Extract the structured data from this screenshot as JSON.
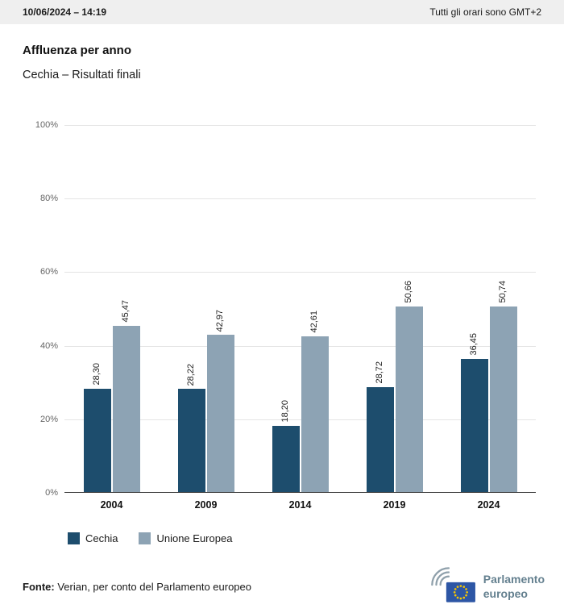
{
  "top_bar": {
    "datetime": "10/06/2024 – 14:19",
    "timezone_note": "Tutti gli orari sono GMT+2"
  },
  "header": {
    "title": "Affluenza per anno",
    "subtitle": "Cechia – Risultati finali"
  },
  "chart_data": {
    "type": "bar",
    "title": "Affluenza per anno",
    "subtitle": "Cechia – Risultati finali",
    "categories": [
      "2004",
      "2009",
      "2014",
      "2019",
      "2024"
    ],
    "series": [
      {
        "name": "Cechia",
        "color": "#1d4d6d",
        "values": [
          28.3,
          28.22,
          18.2,
          28.72,
          36.45
        ],
        "labels": [
          "28,30",
          "28,22",
          "18,20",
          "28,72",
          "36,45"
        ]
      },
      {
        "name": "Unione Europea",
        "color": "#8da3b4",
        "values": [
          45.47,
          42.97,
          42.61,
          50.66,
          50.74
        ],
        "labels": [
          "45,47",
          "42,97",
          "42,61",
          "50,66",
          "50,74"
        ]
      }
    ],
    "ylim": [
      0,
      100
    ],
    "yticks": [
      "0%",
      "20%",
      "40%",
      "60%",
      "80%",
      "100%"
    ],
    "grid": true,
    "legend_position": "bottom",
    "value_label_rotation": -90
  },
  "legend": {
    "items": [
      {
        "label": "Cechia",
        "color": "#1d4d6d"
      },
      {
        "label": "Unione Europea",
        "color": "#8da3b4"
      }
    ]
  },
  "footer": {
    "source_label": "Fonte:",
    "source_text": " Verian, per conto del Parlamento europeo"
  },
  "logo": {
    "text_line1": "Parlamento",
    "text_line2": "europeo",
    "flag_color": "#2d56a5",
    "star_color": "#f7c600",
    "arc_color": "#8fa0ab"
  }
}
